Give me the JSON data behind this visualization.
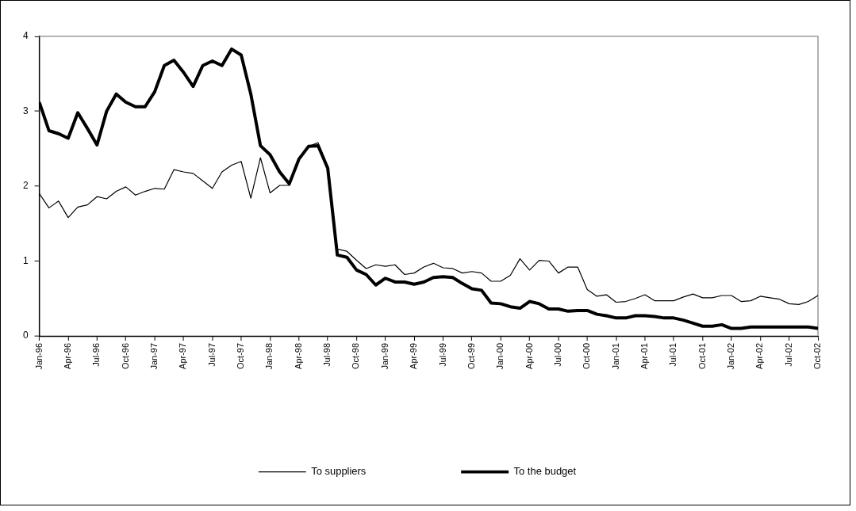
{
  "chart_data": {
    "type": "line",
    "legend": "bottom",
    "marker": "none",
    "line_style": "solid",
    "grid": false,
    "x": [
      "1996-01",
      "1996-02",
      "1996-03",
      "1996-04",
      "1996-05",
      "1996-06",
      "1996-07",
      "1996-08",
      "1996-09",
      "1996-10",
      "1996-11",
      "1996-12",
      "1997-01",
      "1997-02",
      "1997-03",
      "1997-04",
      "1997-05",
      "1997-06",
      "1997-07",
      "1997-08",
      "1997-09",
      "1997-10",
      "1997-11",
      "1997-12",
      "1998-01",
      "1998-02",
      "1998-03",
      "1998-04",
      "1998-05",
      "1998-06",
      "1998-07",
      "1998-08",
      "1998-09",
      "1998-10",
      "1998-11",
      "1998-12",
      "1999-01",
      "1999-02",
      "1999-03",
      "1999-04",
      "1999-05",
      "1999-06",
      "1999-07",
      "1999-08",
      "1999-09",
      "1999-10",
      "1999-11",
      "1999-12",
      "2000-01",
      "2000-02",
      "2000-03",
      "2000-04",
      "2000-05",
      "2000-06",
      "2000-07",
      "2000-08",
      "2000-09",
      "2000-10",
      "2000-11",
      "2000-12",
      "2001-01",
      "2001-02",
      "2001-03",
      "2001-04",
      "2001-05",
      "2001-06",
      "2001-07",
      "2001-08",
      "2001-09",
      "2001-10",
      "2001-11",
      "2001-12",
      "2002-01",
      "2002-02",
      "2002-03",
      "2002-04",
      "2002-05",
      "2002-06",
      "2002-07",
      "2002-08",
      "2002-09",
      "2002-10"
    ],
    "xlim": [
      "1996-01",
      "2002-10"
    ],
    "xticks": [
      {
        "value": "1996-01",
        "label": "Jan-96"
      },
      {
        "value": "1996-04",
        "label": "Apr-96"
      },
      {
        "value": "1996-07",
        "label": "Jul-96"
      },
      {
        "value": "1996-10",
        "label": "Oct-96"
      },
      {
        "value": "1997-01",
        "label": "Jan-97"
      },
      {
        "value": "1997-04",
        "label": "Apr-97"
      },
      {
        "value": "1997-07",
        "label": "Jul-97"
      },
      {
        "value": "1997-10",
        "label": "Oct-97"
      },
      {
        "value": "1998-01",
        "label": "Jan-98"
      },
      {
        "value": "1998-04",
        "label": "Apr-98"
      },
      {
        "value": "1998-07",
        "label": "Jul-98"
      },
      {
        "value": "1998-10",
        "label": "Oct-98"
      },
      {
        "value": "1999-01",
        "label": "Jan-99"
      },
      {
        "value": "1999-04",
        "label": "Apr-99"
      },
      {
        "value": "1999-07",
        "label": "Jul-99"
      },
      {
        "value": "1999-10",
        "label": "Oct-99"
      },
      {
        "value": "2000-01",
        "label": "Jan-00"
      },
      {
        "value": "2000-04",
        "label": "Apr-00"
      },
      {
        "value": "2000-07",
        "label": "Jul-00"
      },
      {
        "value": "2000-10",
        "label": "Oct-00"
      },
      {
        "value": "2001-01",
        "label": "Jan-01"
      },
      {
        "value": "2001-04",
        "label": "Apr-01"
      },
      {
        "value": "2001-07",
        "label": "Jul-01"
      },
      {
        "value": "2001-10",
        "label": "Oct-01"
      },
      {
        "value": "2002-01",
        "label": "Jan-02"
      },
      {
        "value": "2002-04",
        "label": "Apr-02"
      },
      {
        "value": "2002-07",
        "label": "Jul-02"
      },
      {
        "value": "2002-10",
        "label": "Oct-02"
      }
    ],
    "ylim": [
      0,
      4
    ],
    "yticks": [
      0,
      1,
      2,
      3,
      4
    ],
    "series": [
      {
        "name": "To suppliers",
        "color": "#000000",
        "values": [
          1.9,
          1.71,
          1.8,
          1.58,
          1.72,
          1.75,
          1.86,
          1.83,
          1.93,
          1.99,
          1.88,
          1.93,
          1.97,
          1.96,
          2.22,
          2.19,
          2.17,
          2.07,
          1.97,
          2.19,
          2.28,
          2.33,
          1.84,
          2.38,
          1.91,
          2.01,
          2.01,
          2.36,
          2.53,
          2.58,
          2.26,
          1.16,
          1.13,
          1.01,
          0.9,
          0.95,
          0.93,
          0.95,
          0.82,
          0.84,
          0.92,
          0.97,
          0.91,
          0.9,
          0.84,
          0.86,
          0.84,
          0.73,
          0.73,
          0.81,
          1.03,
          0.88,
          1.01,
          1.0,
          0.84,
          0.92,
          0.92,
          0.62,
          0.53,
          0.55,
          0.45,
          0.46,
          0.5,
          0.55,
          0.47,
          0.47,
          0.47,
          0.52,
          0.56,
          0.51,
          0.51,
          0.54,
          0.54,
          0.46,
          0.47,
          0.53,
          0.51,
          0.49,
          0.43,
          0.42,
          0.46,
          0.54
        ]
      },
      {
        "name": "To the budget",
        "color": "#000000",
        "values": [
          3.12,
          2.74,
          2.7,
          2.64,
          2.98,
          2.77,
          2.55,
          3.0,
          3.23,
          3.12,
          3.06,
          3.06,
          3.26,
          3.61,
          3.68,
          3.52,
          3.33,
          3.61,
          3.67,
          3.61,
          3.83,
          3.75,
          3.23,
          2.54,
          2.42,
          2.19,
          2.03,
          2.36,
          2.53,
          2.54,
          2.24,
          1.08,
          1.05,
          0.88,
          0.82,
          0.68,
          0.77,
          0.72,
          0.72,
          0.69,
          0.72,
          0.78,
          0.79,
          0.78,
          0.7,
          0.63,
          0.61,
          0.44,
          0.43,
          0.39,
          0.37,
          0.46,
          0.43,
          0.36,
          0.36,
          0.33,
          0.34,
          0.34,
          0.29,
          0.27,
          0.24,
          0.24,
          0.27,
          0.27,
          0.26,
          0.24,
          0.24,
          0.21,
          0.17,
          0.13,
          0.13,
          0.15,
          0.1,
          0.1,
          0.12,
          0.12,
          0.12,
          0.12,
          0.12,
          0.12,
          0.12,
          0.1
        ]
      }
    ]
  }
}
